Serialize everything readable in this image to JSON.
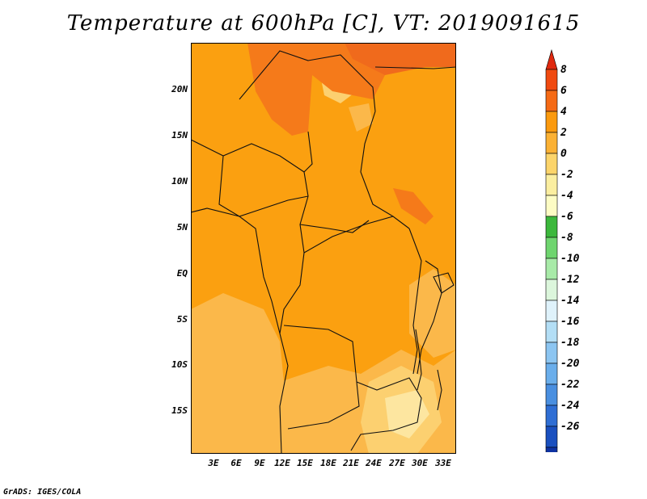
{
  "title": "Temperature at 600hPa [C], VT: 2019091615",
  "credit": "GrADS: IGES/COLA",
  "lat_labels": [
    "20N",
    "15N",
    "10N",
    "5N",
    "EQ",
    "5S",
    "10S",
    "15S"
  ],
  "lon_labels": [
    "3E",
    "6E",
    "9E",
    "12E",
    "15E",
    "18E",
    "21E",
    "24E",
    "27E",
    "30E",
    "33E"
  ],
  "colorbar": {
    "labels": [
      "8",
      "6",
      "4",
      "2",
      "0",
      "-2",
      "-4",
      "-6",
      "-8",
      "-10",
      "-12",
      "-14",
      "-16",
      "-18",
      "-20",
      "-22",
      "-24",
      "-26"
    ],
    "colors": [
      "#e0290f",
      "#f04a10",
      "#f56a15",
      "#fb9a0e",
      "#fbb134",
      "#fcd46a",
      "#fbeea0",
      "#fdfcc4",
      "#3cb83c",
      "#6fd56f",
      "#a8eaa8",
      "#dcf6dc",
      "#dff2fb",
      "#b3def5",
      "#8cc5f1",
      "#6aaeeb",
      "#4a8fe0",
      "#2f6ed4",
      "#1a50bf",
      "#0e32a2",
      "#071478",
      "#dcdcf5"
    ]
  },
  "map_colors": {
    "base": "#fba010",
    "warm": "#f57a1a",
    "warmer": "#f06a1c",
    "cool": "#fbb84a",
    "cooler": "#fcd070",
    "coolest": "#fde6a0"
  }
}
